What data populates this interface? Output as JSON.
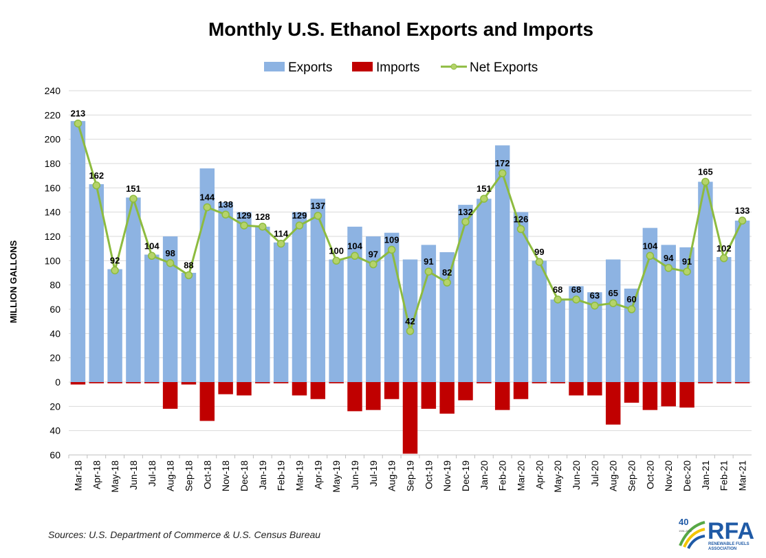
{
  "chart_data": {
    "type": "bar",
    "title": "Monthly U.S. Ethanol Exports and Imports",
    "ylabel": "MILLION GALLONS",
    "xlabel": "",
    "ylim": [
      -60,
      240
    ],
    "ytick_step": 20,
    "grid": true,
    "legend_placement": "top-center",
    "categories": [
      "Mar-18",
      "Apr-18",
      "May-18",
      "Jun-18",
      "Jul-18",
      "Aug-18",
      "Sep-18",
      "Oct-18",
      "Nov-18",
      "Dec-18",
      "Jan-19",
      "Feb-19",
      "Mar-19",
      "Apr-19",
      "May-19",
      "Jun-19",
      "Jul-19",
      "Aug-19",
      "Sep-19",
      "Oct-19",
      "Nov-19",
      "Dec-19",
      "Jan-20",
      "Feb-20",
      "Mar-20",
      "Apr-20",
      "May-20",
      "Jun-20",
      "Jul-20",
      "Aug-20",
      "Sep-20",
      "Oct-20",
      "Nov-20",
      "Dec-20",
      "Jan-21",
      "Feb-21",
      "Mar-21"
    ],
    "series": [
      {
        "name": "Exports",
        "kind": "bar",
        "color": "#8db3e2",
        "values": [
          215,
          163,
          93,
          152,
          105,
          120,
          90,
          176,
          148,
          140,
          128,
          115,
          140,
          151,
          101,
          128,
          120,
          123,
          101,
          113,
          107,
          146,
          151,
          195,
          140,
          100,
          68,
          79,
          74,
          101,
          77,
          127,
          113,
          111,
          165,
          103,
          133
        ]
      },
      {
        "name": "Imports",
        "kind": "bar",
        "color": "#c00000",
        "values": [
          -2,
          -1,
          -1,
          -1,
          -1,
          -22,
          -2,
          -32,
          -10,
          -11,
          -1,
          -1,
          -11,
          -14,
          -1,
          -24,
          -23,
          -14,
          -59,
          -22,
          -26,
          -15,
          -1,
          -23,
          -14,
          -1,
          -1,
          -11,
          -11,
          -35,
          -17,
          -23,
          -20,
          -21,
          -1,
          -1,
          -1
        ]
      },
      {
        "name": "Net Exports",
        "kind": "line",
        "color": "#8dbb3f",
        "values": [
          213,
          162,
          92,
          151,
          104,
          98,
          88,
          144,
          138,
          129,
          128,
          114,
          129,
          137,
          100,
          104,
          97,
          109,
          42,
          91,
          82,
          132,
          151,
          172,
          126,
          99,
          68,
          68,
          63,
          65,
          60,
          104,
          94,
          91,
          165,
          102,
          133
        ]
      }
    ]
  },
  "source_note": "Sources: U.S. Department of Commerce & U.S. Census Bureau",
  "logo": {
    "name": "RFA",
    "anniversary": "40",
    "years": "1981-2021",
    "subtitle_line1": "RENEWABLE FUELS",
    "subtitle_line2": "ASSOCIATION",
    "colors": {
      "blue": "#1f5aa6",
      "green": "#57a845",
      "yellow": "#f2c500"
    }
  }
}
